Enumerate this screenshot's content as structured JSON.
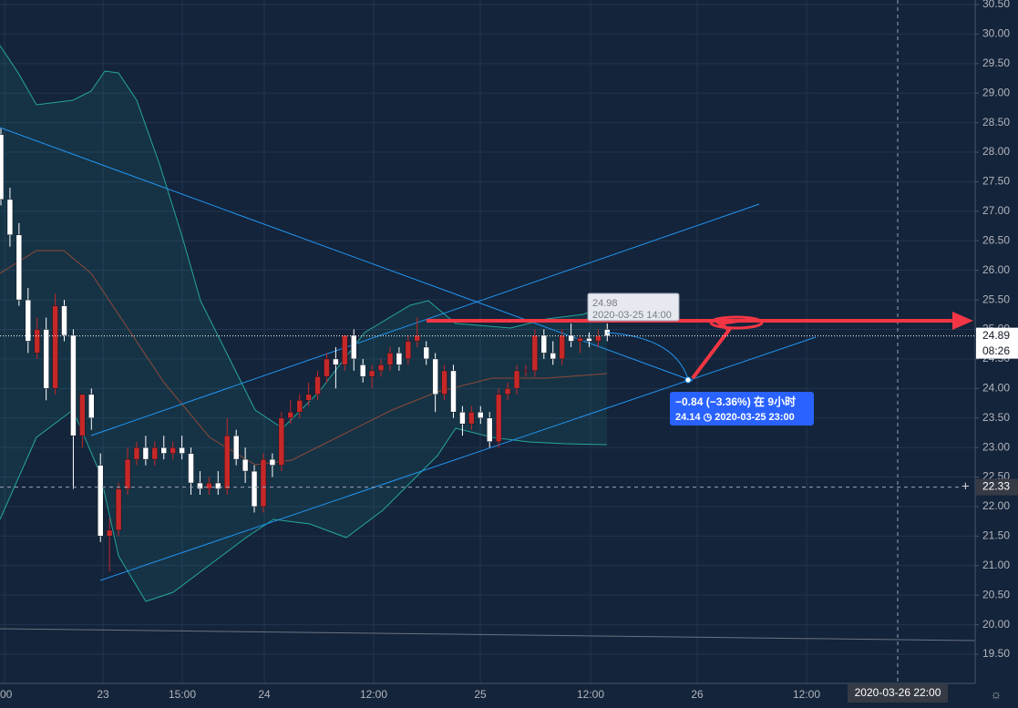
{
  "chart_data": {
    "type": "candlestick",
    "open": [
      28.3,
      27.2,
      26.6,
      25.5,
      24.6,
      25.0,
      24.0,
      25.4,
      24.9,
      23.2,
      23.9,
      22.7,
      21.5,
      21.6,
      22.3,
      22.8,
      23.0,
      22.8,
      23.0,
      22.9,
      23.0,
      22.9,
      22.4,
      22.3,
      22.4,
      22.3,
      23.2,
      22.8,
      22.6,
      22.0,
      22.8,
      22.7,
      23.5,
      23.6,
      23.8,
      23.9,
      24.2,
      24.5,
      24.4,
      24.9,
      24.4,
      24.2,
      24.3,
      24.4,
      24.6,
      24.5,
      24.8,
      24.7,
      24.5,
      23.9,
      24.3,
      23.6,
      23.4,
      23.6,
      23.5,
      23.1,
      23.9,
      24.0,
      24.3,
      24.3,
      24.9,
      24.6,
      24.5,
      24.9,
      24.8,
      24.85,
      24.8,
      25.0
    ],
    "high": [
      28.4,
      27.4,
      26.8,
      25.7,
      25.2,
      25.2,
      25.6,
      25.5,
      25.0,
      23.9,
      24.0,
      22.9,
      21.8,
      22.4,
      23.0,
      23.1,
      23.2,
      23.1,
      23.2,
      23.1,
      23.2,
      23.0,
      22.6,
      22.5,
      22.6,
      23.5,
      23.3,
      23.0,
      22.7,
      22.9,
      22.9,
      23.6,
      23.8,
      23.9,
      24.1,
      24.3,
      24.6,
      24.7,
      24.9,
      25.0,
      24.5,
      24.4,
      24.5,
      24.7,
      24.7,
      24.9,
      25.2,
      24.8,
      24.6,
      24.4,
      24.4,
      23.7,
      23.7,
      23.7,
      23.6,
      24.0,
      24.1,
      24.4,
      24.4,
      25.0,
      25.0,
      24.8,
      25.0,
      25.1,
      24.9,
      24.95,
      25.0,
      25.1
    ],
    "low": [
      27.1,
      26.4,
      25.4,
      24.6,
      24.5,
      23.8,
      23.9,
      24.8,
      22.3,
      23.0,
      23.3,
      21.4,
      20.9,
      21.5,
      22.2,
      22.7,
      22.7,
      22.7,
      22.8,
      22.8,
      22.8,
      22.2,
      22.2,
      22.2,
      22.2,
      22.2,
      22.7,
      22.4,
      21.9,
      21.9,
      22.5,
      22.6,
      23.4,
      23.5,
      23.7,
      23.8,
      24.1,
      24.0,
      24.3,
      24.3,
      24.1,
      24.0,
      24.2,
      24.3,
      24.3,
      24.4,
      24.7,
      24.4,
      23.6,
      23.8,
      23.5,
      23.2,
      23.3,
      23.4,
      23.0,
      23.0,
      23.8,
      23.9,
      24.2,
      24.2,
      24.5,
      24.4,
      24.4,
      24.7,
      24.6,
      24.7,
      24.7,
      24.8
    ],
    "close": [
      27.2,
      26.6,
      25.5,
      24.8,
      25.0,
      24.0,
      25.4,
      24.9,
      23.2,
      23.9,
      23.5,
      21.5,
      21.6,
      22.3,
      22.8,
      23.0,
      22.8,
      23.0,
      22.9,
      23.0,
      22.9,
      22.4,
      22.3,
      22.4,
      22.3,
      23.2,
      22.8,
      22.6,
      22.0,
      22.8,
      22.7,
      23.5,
      23.6,
      23.8,
      23.9,
      24.2,
      24.5,
      24.4,
      24.9,
      24.5,
      24.2,
      24.3,
      24.4,
      24.6,
      24.4,
      24.8,
      24.9,
      24.5,
      23.9,
      24.3,
      23.6,
      23.4,
      23.6,
      23.5,
      23.1,
      23.9,
      24.0,
      24.3,
      24.3,
      24.9,
      24.6,
      24.5,
      24.9,
      24.8,
      24.85,
      24.8,
      24.89,
      24.89
    ],
    "up_color": "#c62828",
    "down_color": "#ffffff",
    "ylim": [
      19.5,
      30.5
    ],
    "yticks": [
      {
        "value": 19.5,
        "label": "19.50"
      },
      {
        "value": 20,
        "label": "20.00"
      },
      {
        "value": 20.5,
        "label": "20.50"
      },
      {
        "value": 21,
        "label": "21.00"
      },
      {
        "value": 21.5,
        "label": "21.50"
      },
      {
        "value": 22,
        "label": "22.00"
      },
      {
        "value": 22.5,
        "label": "22.50"
      },
      {
        "value": 23,
        "label": "23.00"
      },
      {
        "value": 23.5,
        "label": "23.50"
      },
      {
        "value": 24,
        "label": "24.00"
      },
      {
        "value": 24.5,
        "label": "24.50"
      },
      {
        "value": 25,
        "label": "25.00"
      },
      {
        "value": 25.5,
        "label": "25.50"
      },
      {
        "value": 26,
        "label": "26.00"
      },
      {
        "value": 26.5,
        "label": "26.50"
      },
      {
        "value": 27,
        "label": "27.00"
      },
      {
        "value": 27.5,
        "label": "27.50"
      },
      {
        "value": 28,
        "label": "28.00"
      },
      {
        "value": 28.5,
        "label": "28.50"
      },
      {
        "value": 29,
        "label": "29.00"
      },
      {
        "value": 29.5,
        "label": "29.50"
      },
      {
        "value": 30,
        "label": "30.00"
      },
      {
        "value": 30.5,
        "label": "30.50"
      }
    ],
    "grid": true,
    "time_labels": [
      ":00",
      "23",
      "15:00",
      "24",
      "12:00",
      "25",
      "12:00",
      "26",
      "12:00"
    ],
    "crosshair_time": "2020-03-26  22:00",
    "last_price": 24.89,
    "countdown": "08:26",
    "crosshair_price": 22.33,
    "tooltip": {
      "price": "24.98",
      "time": "2020-03-25 14:00"
    },
    "measure": {
      "change": "−0.84 (−3.36%) 在 9小时",
      "target": "24.14 ◷ 2020-03-25  23:00"
    }
  }
}
